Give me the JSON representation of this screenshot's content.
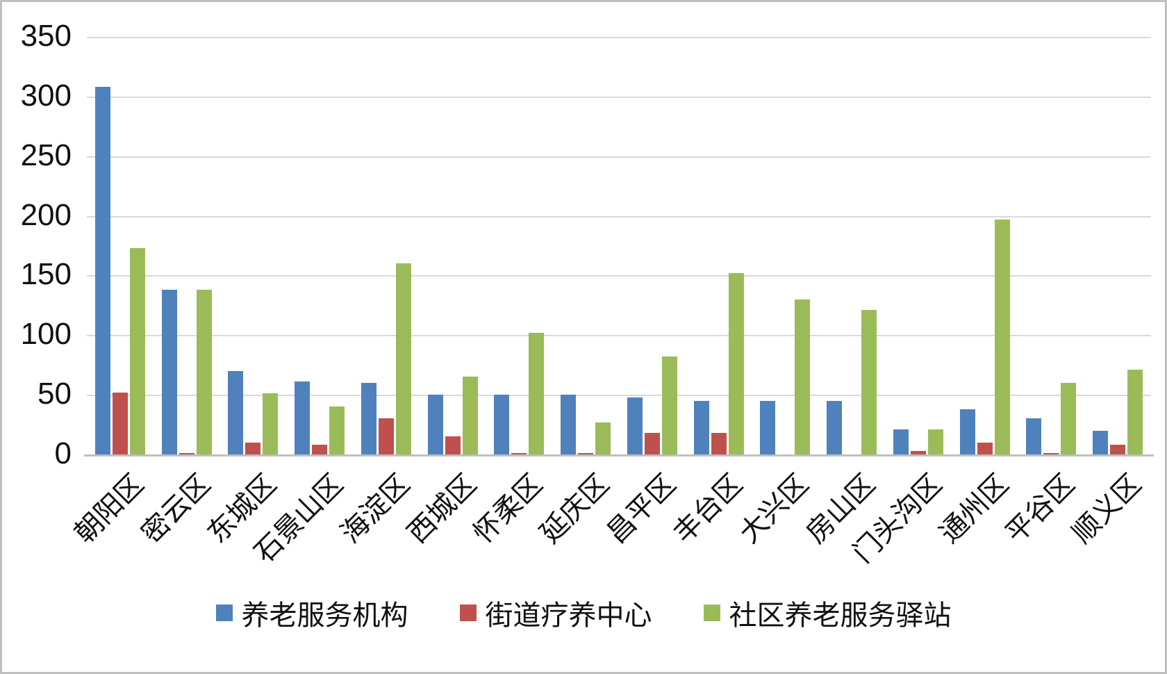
{
  "chart_data": {
    "type": "bar",
    "title": "",
    "xlabel": "",
    "ylabel": "",
    "categories": [
      "朝阳区",
      "密云区",
      "东城区",
      "石景山区",
      "海淀区",
      "西城区",
      "怀柔区",
      "延庆区",
      "昌平区",
      "丰台区",
      "大兴区",
      "房山区",
      "门头沟区",
      "通州区",
      "平谷区",
      "顺义区"
    ],
    "series": [
      {
        "name": "养老服务机构",
        "color": "#4F81BD",
        "values": [
          308,
          138,
          70,
          61,
          60,
          50,
          50,
          50,
          48,
          45,
          45,
          45,
          21,
          38,
          30,
          20
        ]
      },
      {
        "name": "街道疗养中心",
        "color": "#C0504D",
        "values": [
          52,
          1,
          10,
          8,
          30,
          15,
          1,
          1,
          18,
          18,
          0,
          0,
          3,
          10,
          1,
          8
        ]
      },
      {
        "name": "社区养老服务驿站",
        "color": "#9BBB59",
        "values": [
          173,
          138,
          51,
          40,
          160,
          65,
          102,
          27,
          82,
          152,
          130,
          121,
          21,
          197,
          60,
          71
        ]
      }
    ],
    "ylim": [
      0,
      350
    ],
    "yticks": [
      "0",
      "50",
      "100",
      "150",
      "200",
      "250",
      "300",
      "350"
    ],
    "ytick_interval": 50,
    "grid": "horizontal",
    "legend_position": "bottom",
    "colors": {
      "gridline": "#D9D9D9",
      "axis_line": "#BFBFBF",
      "frame_border": "#BFBFBF",
      "text": "#111111",
      "background": "#FFFFFF"
    }
  }
}
